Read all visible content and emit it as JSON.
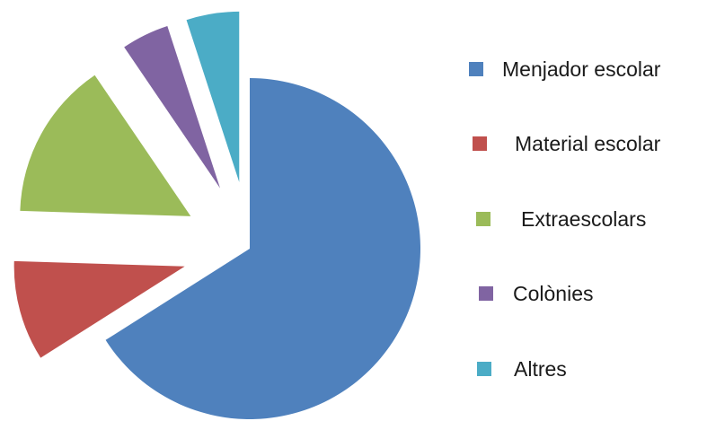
{
  "chart_data": {
    "type": "pie",
    "title": "",
    "categories": [
      "Menjador escolar",
      "Material escolar",
      "Extraescolars",
      "Colònies",
      "Altres"
    ],
    "values": [
      66.0,
      9.5,
      15.0,
      4.5,
      5.0
    ],
    "colors": [
      "#4F81BD",
      "#C0504D",
      "#9BBB59",
      "#8064A2",
      "#4BACC6"
    ],
    "exploded": [
      false,
      true,
      true,
      true,
      true
    ],
    "start_angle_deg": 0,
    "direction": "clockwise",
    "legend_position": "right"
  },
  "legend": {
    "items": [
      {
        "label": "Menjador escolar",
        "color": "#4F81BD"
      },
      {
        "label": "Material escolar",
        "color": "#C0504D"
      },
      {
        "label": "Extraescolars",
        "color": "#9BBB59"
      },
      {
        "label": "Colònies",
        "color": "#8064A2"
      },
      {
        "label": "Altres",
        "color": "#4BACC6"
      }
    ]
  }
}
